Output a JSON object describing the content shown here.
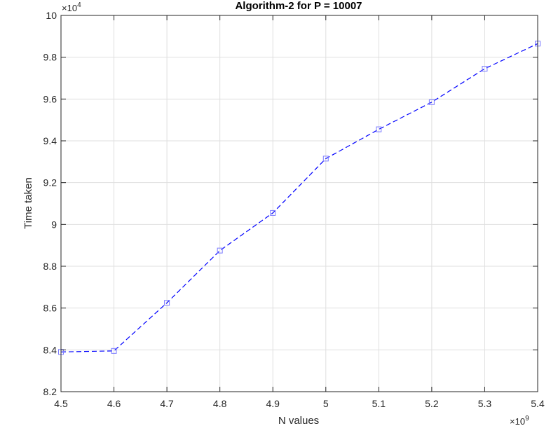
{
  "chart_data": {
    "type": "line",
    "title": "Algorithm-2 for P = 10007",
    "xlabel": "N values",
    "ylabel": "Time taken",
    "x_exponent_base": "×10",
    "x_exponent_power": "9",
    "y_exponent_base": "×10",
    "y_exponent_power": "4",
    "xlim": [
      4.5,
      5.4
    ],
    "ylim": [
      8.2,
      10
    ],
    "x_ticks": [
      4.5,
      4.6,
      4.7,
      4.8,
      4.9,
      5.0,
      5.1,
      5.2,
      5.3,
      5.4
    ],
    "x_tick_labels": [
      "4.5",
      "4.6",
      "4.7",
      "4.8",
      "4.9",
      "5",
      "5.1",
      "5.2",
      "5.3",
      "5.4"
    ],
    "y_ticks": [
      8.2,
      8.4,
      8.6,
      8.8,
      9.0,
      9.2,
      9.4,
      9.6,
      9.8,
      10.0
    ],
    "y_tick_labels": [
      "8.2",
      "8.4",
      "8.6",
      "8.8",
      "9",
      "9.2",
      "9.4",
      "9.6",
      "9.8",
      "10"
    ],
    "grid": true,
    "series": [
      {
        "line_style": "dashed",
        "marker": "square",
        "color": "#0000ff",
        "x": [
          4.5,
          4.6,
          4.7,
          4.8,
          4.9,
          5.0,
          5.1,
          5.2,
          5.3,
          5.4
        ],
        "y": [
          8.39,
          8.395,
          8.625,
          8.875,
          9.055,
          9.315,
          9.455,
          9.585,
          9.745,
          9.865
        ]
      }
    ]
  }
}
